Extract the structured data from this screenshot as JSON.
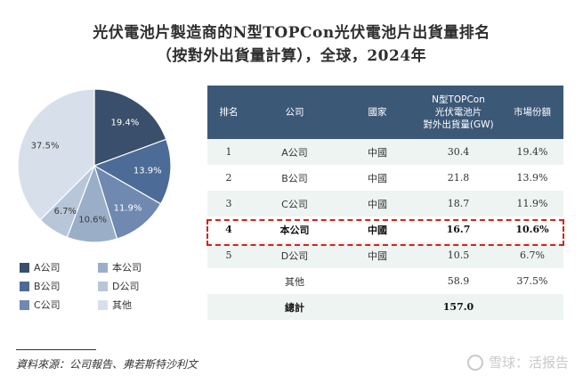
{
  "title_line1": "光伏電池片製造商的N型TOPCon光伏電池片出貨量排名",
  "title_line2": "（按對外出貨量計算），全球，2024年",
  "chart_data": {
    "type": "pie",
    "slices": [
      {
        "name": "A公司",
        "value": 19.4,
        "label": "19.4%",
        "color": "#3a4f6b"
      },
      {
        "name": "B公司",
        "value": 13.9,
        "label": "13.9%",
        "color": "#4c6b96"
      },
      {
        "name": "C公司",
        "value": 11.9,
        "label": "11.9%",
        "color": "#6f89b1"
      },
      {
        "name": "本公司",
        "value": 10.6,
        "label": "10.6%",
        "color": "#9aaec8"
      },
      {
        "name": "D公司",
        "value": 6.7,
        "label": "6.7%",
        "color": "#b7c6d9"
      },
      {
        "name": "其他",
        "value": 37.5,
        "label": "37.5%",
        "color": "#d7e0ea"
      }
    ],
    "legend_layout": "below-pie, two columns"
  },
  "legend": [
    {
      "label": "A公司",
      "color": "#3a4f6b"
    },
    {
      "label": "本公司",
      "color": "#9aaec8"
    },
    {
      "label": "B公司",
      "color": "#4c6b96"
    },
    {
      "label": "D公司",
      "color": "#b7c6d9"
    },
    {
      "label": "C公司",
      "color": "#6f89b1"
    },
    {
      "label": "其他",
      "color": "#d7e0ea"
    }
  ],
  "table": {
    "headers": {
      "rank": "排名",
      "company": "公司",
      "country": "國家",
      "shipment_line1": "N型TOPCon",
      "shipment_line2": "光伏電池片",
      "shipment_line3": "對外出貨量(GW)",
      "share": "市場份額"
    },
    "rows": [
      {
        "rank": "1",
        "company": "A公司",
        "country": "中國",
        "shipment": "30.4",
        "share": "19.4%"
      },
      {
        "rank": "2",
        "company": "B公司",
        "country": "中國",
        "shipment": "21.8",
        "share": "13.9%"
      },
      {
        "rank": "3",
        "company": "C公司",
        "country": "中國",
        "shipment": "18.7",
        "share": "11.9%"
      },
      {
        "rank": "4",
        "company": "本公司",
        "country": "中國",
        "shipment": "16.7",
        "share": "10.6%"
      },
      {
        "rank": "5",
        "company": "D公司",
        "country": "中國",
        "shipment": "10.5",
        "share": "6.7%"
      },
      {
        "rank": "",
        "company": "其他",
        "country": "",
        "shipment": "58.9",
        "share": "37.5%"
      }
    ],
    "total": {
      "label": "總計",
      "shipment": "157.0"
    }
  },
  "source": "資料來源：公司報告、弗若斯特沙利文",
  "watermark": "雪球：活报告"
}
